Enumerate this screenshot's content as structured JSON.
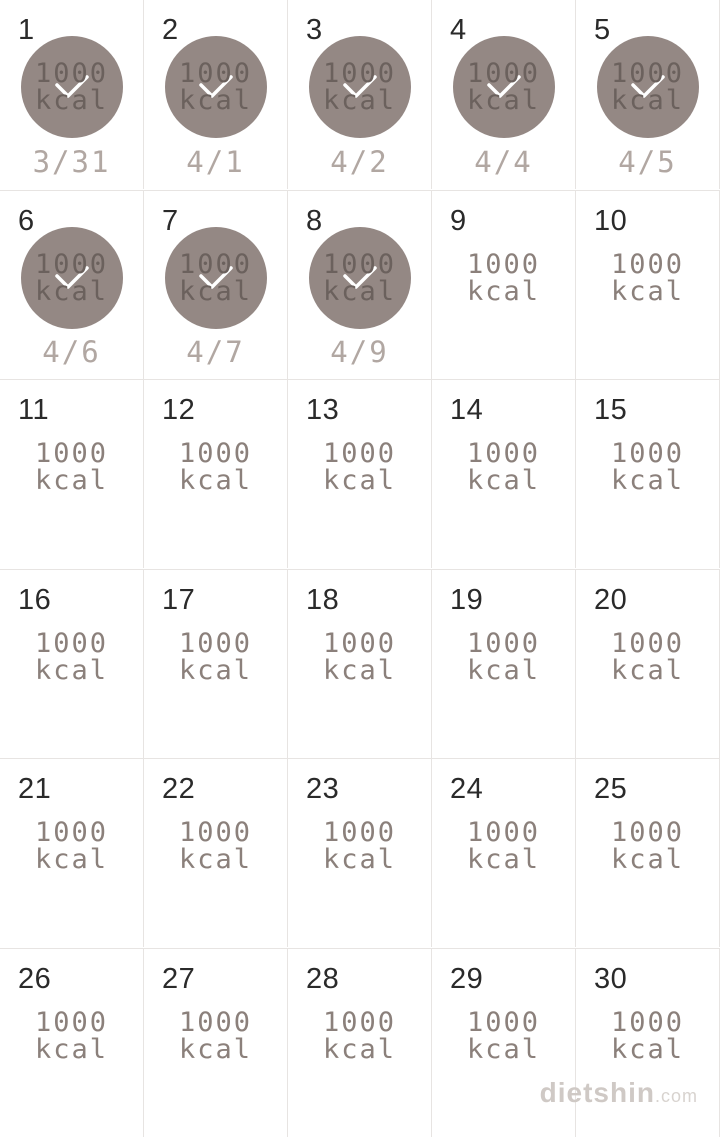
{
  "colors": {
    "cell_border": "#e7e4e2",
    "circle_bg": "#948884",
    "check_stroke": "#ffffff",
    "day_num_color": "#2a2a2a",
    "kcal_color": "#8b807b",
    "kcal_color_done": "#6b615d",
    "date_label_color": "#b1a7a2",
    "bg": "#ffffff"
  },
  "kcal_label": {
    "value": "1000",
    "unit": "kcal"
  },
  "watermark": {
    "main": "dietshin",
    "suffix": ".com"
  },
  "days": [
    {
      "num": "1",
      "completed": true,
      "date_label": "3/31"
    },
    {
      "num": "2",
      "completed": true,
      "date_label": "4/1"
    },
    {
      "num": "3",
      "completed": true,
      "date_label": "4/2"
    },
    {
      "num": "4",
      "completed": true,
      "date_label": "4/4"
    },
    {
      "num": "5",
      "completed": true,
      "date_label": "4/5"
    },
    {
      "num": "6",
      "completed": true,
      "date_label": "4/6"
    },
    {
      "num": "7",
      "completed": true,
      "date_label": "4/7"
    },
    {
      "num": "8",
      "completed": true,
      "date_label": "4/9"
    },
    {
      "num": "9",
      "completed": false
    },
    {
      "num": "10",
      "completed": false
    },
    {
      "num": "11",
      "completed": false
    },
    {
      "num": "12",
      "completed": false
    },
    {
      "num": "13",
      "completed": false
    },
    {
      "num": "14",
      "completed": false
    },
    {
      "num": "15",
      "completed": false
    },
    {
      "num": "16",
      "completed": false
    },
    {
      "num": "17",
      "completed": false
    },
    {
      "num": "18",
      "completed": false
    },
    {
      "num": "19",
      "completed": false
    },
    {
      "num": "20",
      "completed": false
    },
    {
      "num": "21",
      "completed": false
    },
    {
      "num": "22",
      "completed": false
    },
    {
      "num": "23",
      "completed": false
    },
    {
      "num": "24",
      "completed": false
    },
    {
      "num": "25",
      "completed": false
    },
    {
      "num": "26",
      "completed": false
    },
    {
      "num": "27",
      "completed": false
    },
    {
      "num": "28",
      "completed": false
    },
    {
      "num": "29",
      "completed": false
    },
    {
      "num": "30",
      "completed": false
    }
  ]
}
